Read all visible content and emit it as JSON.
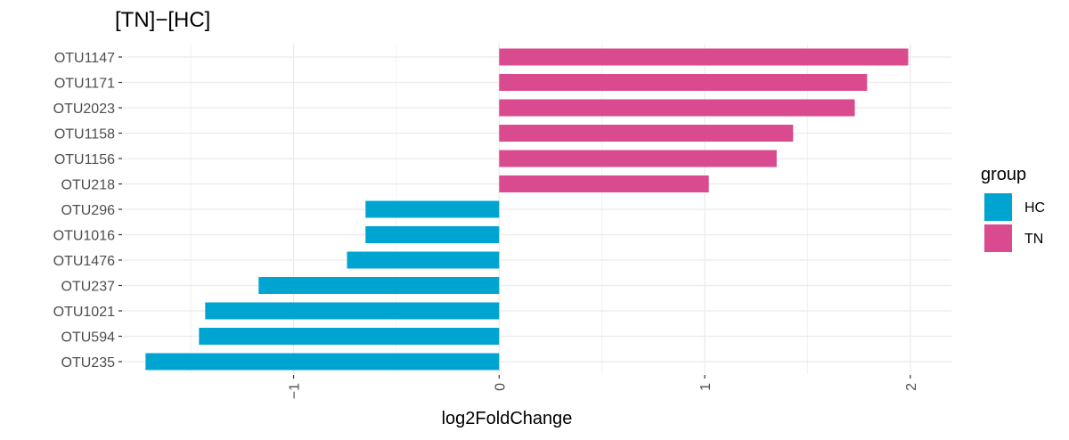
{
  "chart_data": {
    "type": "bar",
    "orientation": "horizontal",
    "title": "[TN]−[HC]",
    "xlabel": "log2FoldChange",
    "ylabel": "",
    "xlim": [
      -1.83,
      2.2
    ],
    "x_ticks": [
      -1,
      0,
      1,
      2
    ],
    "x_tick_labels": [
      "−1",
      "0",
      "1",
      "2"
    ],
    "x_tick_rotation": "vertical",
    "grid": true,
    "categories": [
      "OTU1147",
      "OTU1171",
      "OTU2023",
      "OTU1158",
      "OTU1156",
      "OTU218",
      "OTU296",
      "OTU1016",
      "OTU1476",
      "OTU237",
      "OTU1021",
      "OTU594",
      "OTU235"
    ],
    "values": [
      1.99,
      1.79,
      1.73,
      1.43,
      1.35,
      1.02,
      -0.65,
      -0.65,
      -0.74,
      -1.17,
      -1.43,
      -1.46,
      -1.72
    ],
    "groups": [
      "TN",
      "TN",
      "TN",
      "TN",
      "TN",
      "TN",
      "HC",
      "HC",
      "HC",
      "HC",
      "HC",
      "HC",
      "HC"
    ],
    "legend": {
      "title": "group",
      "placement": "right",
      "entries": [
        {
          "name": "HC",
          "color": "#00A4D1"
        },
        {
          "name": "TN",
          "color": "#DA4A8E"
        }
      ]
    }
  }
}
